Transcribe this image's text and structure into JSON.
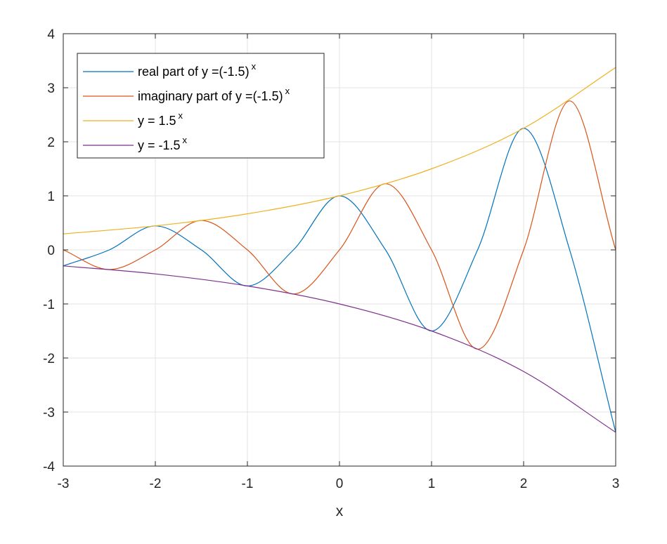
{
  "chart_data": {
    "type": "line",
    "xlabel": "x",
    "ylabel": "",
    "xlim": [
      -3,
      3
    ],
    "ylim": [
      -4,
      4
    ],
    "x_ticks": [
      -3,
      -2,
      -1,
      0,
      1,
      2,
      3
    ],
    "y_ticks": [
      -4,
      -3,
      -2,
      -1,
      0,
      1,
      2,
      3,
      4
    ],
    "x_tick_labels": [
      "-3",
      "-2",
      "-1",
      "0",
      "1",
      "2",
      "3"
    ],
    "y_tick_labels": [
      "-4",
      "-3",
      "-2",
      "-1",
      "0",
      "1",
      "2",
      "3",
      "4"
    ],
    "grid": true,
    "legend_position": "top-left",
    "series": [
      {
        "name": "real part of y =(-1.5)",
        "name_base": "real part of y =(-1.5)",
        "name_sup": "x",
        "color": "#0072BD",
        "x": [
          -3,
          -2.5,
          -2,
          -1.5,
          -1,
          -0.5,
          0,
          0.5,
          1,
          1.5,
          2,
          2.5,
          3
        ],
        "y": [
          -0.296,
          0,
          0.444,
          0,
          -0.667,
          0,
          1,
          0,
          -1.5,
          0,
          2.25,
          0,
          -3.375
        ]
      },
      {
        "name": "imaginary part of y =(-1.5)",
        "name_base": "imaginary part of y =(-1.5)",
        "name_sup": "x",
        "color": "#D95319",
        "x": [
          -3,
          -2.5,
          -2,
          -1.5,
          -1,
          -0.5,
          0,
          0.5,
          1,
          1.5,
          2,
          2.5,
          3
        ],
        "y": [
          0,
          -0.363,
          0,
          0.544,
          0,
          -0.816,
          0,
          1.225,
          0,
          -1.837,
          0,
          2.756,
          0
        ]
      },
      {
        "name": "y = 1.5",
        "name_base": "y = 1.5",
        "name_sup": "x",
        "color": "#EDB120",
        "x": [
          -3,
          -2,
          -1,
          0,
          1,
          2,
          3
        ],
        "y": [
          0.296,
          0.444,
          0.667,
          1,
          1.5,
          2.25,
          3.375
        ]
      },
      {
        "name": "y = -1.5",
        "name_base": "y = -1.5",
        "name_sup": "x",
        "color": "#7E2F8E",
        "x": [
          -3,
          -2,
          -1,
          0,
          1,
          2,
          3
        ],
        "y": [
          -0.296,
          -0.444,
          -0.667,
          -1,
          -1.5,
          -2.25,
          -3.375
        ]
      }
    ]
  }
}
